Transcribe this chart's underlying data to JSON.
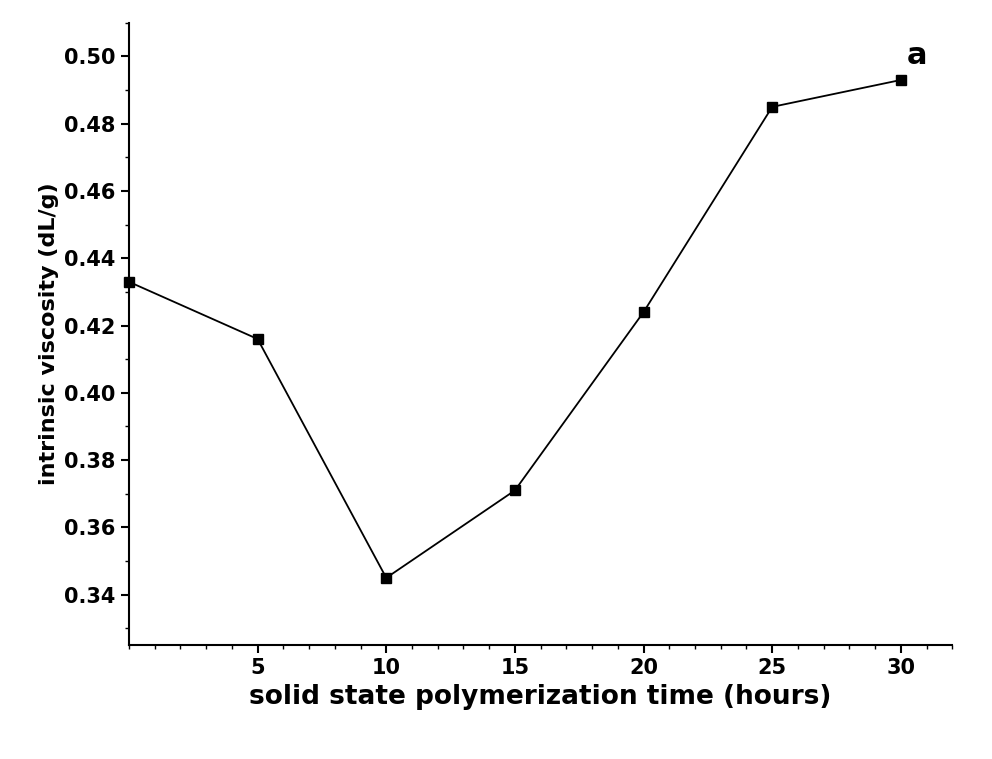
{
  "x": [
    0,
    5,
    10,
    15,
    20,
    25,
    30
  ],
  "y": [
    0.433,
    0.416,
    0.345,
    0.371,
    0.424,
    0.485,
    0.493
  ],
  "xlabel": "solid state polymerization time (hours)",
  "ylabel": "intrinsic viscosity (dL/g)",
  "annotation": "a",
  "xlim": [
    0,
    32
  ],
  "ylim": [
    0.325,
    0.51
  ],
  "yticks": [
    0.34,
    0.36,
    0.38,
    0.4,
    0.42,
    0.44,
    0.46,
    0.48,
    0.5
  ],
  "xticks": [
    5,
    10,
    15,
    20,
    25,
    30
  ],
  "line_color": "#000000",
  "marker": "s",
  "marker_color": "#000000",
  "marker_size": 7,
  "line_width": 1.3,
  "xlabel_fontsize": 19,
  "ylabel_fontsize": 16,
  "tick_fontsize": 15,
  "annotation_fontsize": 22,
  "background_color": "#ffffff"
}
